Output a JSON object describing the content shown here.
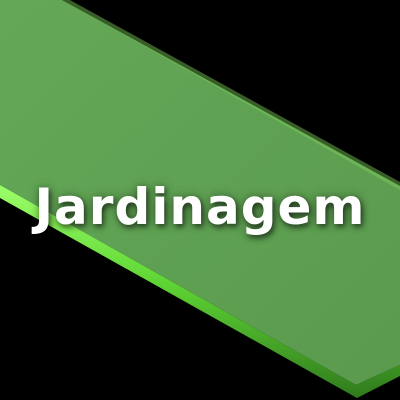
{
  "tile": {
    "title": "Jardinagem",
    "colors": {
      "background": "#000000",
      "band_fill": "#5fa052",
      "band_edge": "#66e13f",
      "text": "#ffffff"
    }
  }
}
